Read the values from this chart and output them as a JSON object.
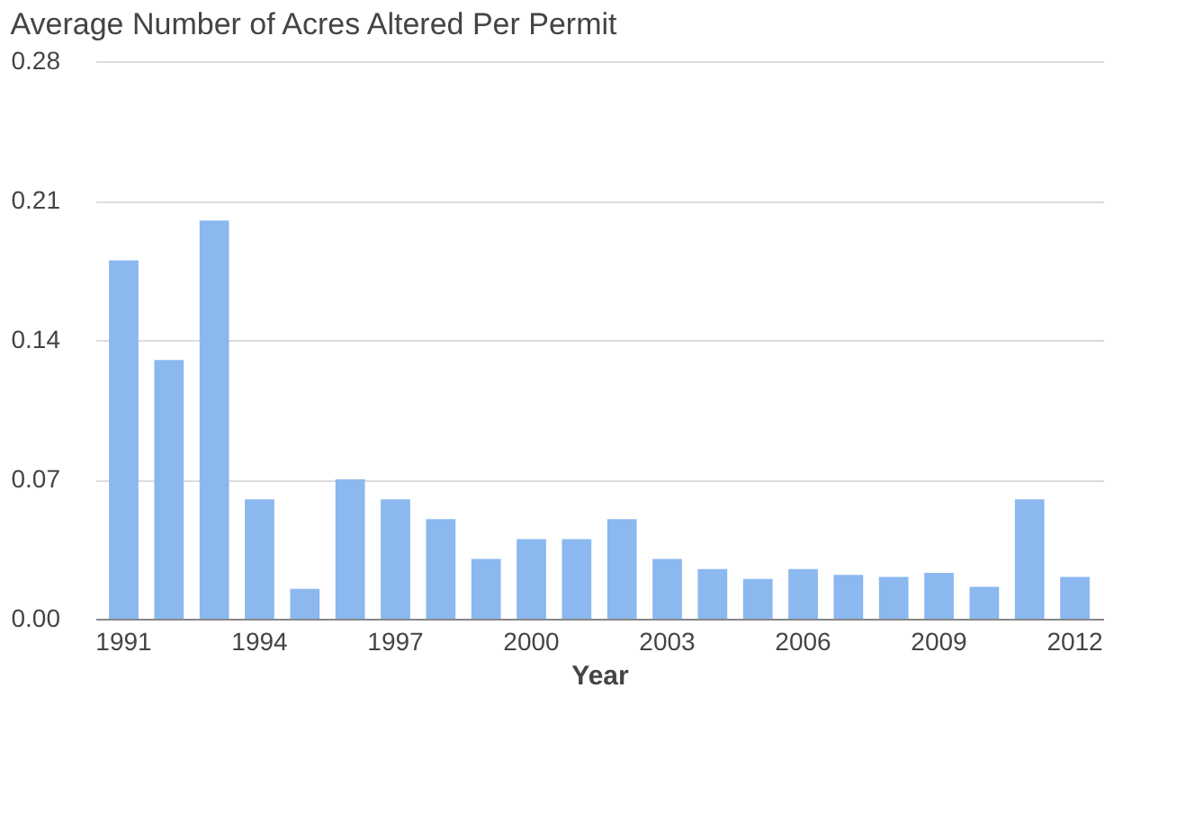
{
  "chart_data": {
    "type": "bar",
    "title": "Average Number of Acres Altered Per Permit",
    "xlabel": "Year",
    "categories": [
      "1991",
      null,
      null,
      "1994",
      null,
      null,
      "1997",
      null,
      null,
      "2000",
      null,
      null,
      "2003",
      null,
      null,
      "2006",
      null,
      null,
      "2009",
      null,
      null,
      "2012"
    ],
    "values": [
      0.18,
      0.13,
      0.2,
      0.06,
      0.015,
      0.07,
      0.06,
      0.05,
      0.03,
      0.04,
      0.04,
      0.05,
      0.03,
      0.025,
      0.02,
      0.025,
      0.022,
      0.021,
      0.023,
      0.016,
      0.06,
      0.021
    ],
    "color": "#8ab8ef",
    "ylim": [
      0,
      0.28
    ],
    "yticks": [
      {
        "value": 0,
        "label": "0.00"
      },
      0.07,
      0.14,
      0.21,
      0.28
    ],
    "grid": "y"
  }
}
